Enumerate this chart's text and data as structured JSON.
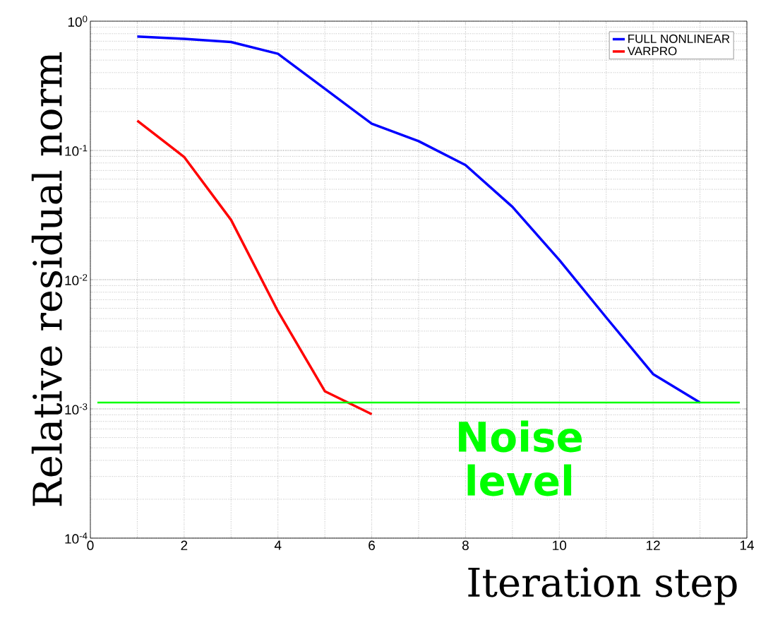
{
  "chart_data": {
    "type": "line",
    "xlabel": "Iteration step",
    "ylabel": "Relative residual norm",
    "series": [
      {
        "name": "FULL NONLINEAR",
        "color": "#0000ff",
        "x": [
          1,
          2,
          3,
          4,
          5,
          6,
          7,
          8,
          9,
          10,
          11,
          12,
          13
        ],
        "values": [
          0.76,
          0.73,
          0.69,
          0.56,
          0.3,
          0.161,
          0.118,
          0.077,
          0.0366,
          0.0142,
          0.0051,
          0.00186,
          0.00112
        ]
      },
      {
        "name": "VARPRO",
        "color": "#ff0000",
        "x": [
          1,
          2,
          3,
          4,
          5,
          6
        ],
        "values": [
          0.17,
          0.089,
          0.029,
          0.0057,
          0.00137,
          0.00091
        ]
      }
    ],
    "xlim": [
      0,
      14
    ],
    "xticks": [
      0,
      2,
      4,
      6,
      8,
      10,
      12,
      14
    ],
    "ylim": [
      0.0001,
      1
    ],
    "yticks": [
      {
        "value": 0.0001,
        "label": "10$^{-4}$"
      },
      {
        "value": 0.001,
        "label": "10$^{-3}$"
      },
      {
        "value": 0.01,
        "label": "10$^{-2}$"
      },
      {
        "value": 0.1,
        "label": "10$^{-1}$"
      },
      {
        "value": 1,
        "label": "10$^{0}$"
      }
    ],
    "log": "y",
    "grid": true,
    "legend": "top right",
    "line_style": "solid",
    "marker": "none",
    "ref_lines": [
      {
        "axis": "y",
        "value": 0.00112,
        "label": "Noise level",
        "color": "#00ff00"
      }
    ]
  }
}
